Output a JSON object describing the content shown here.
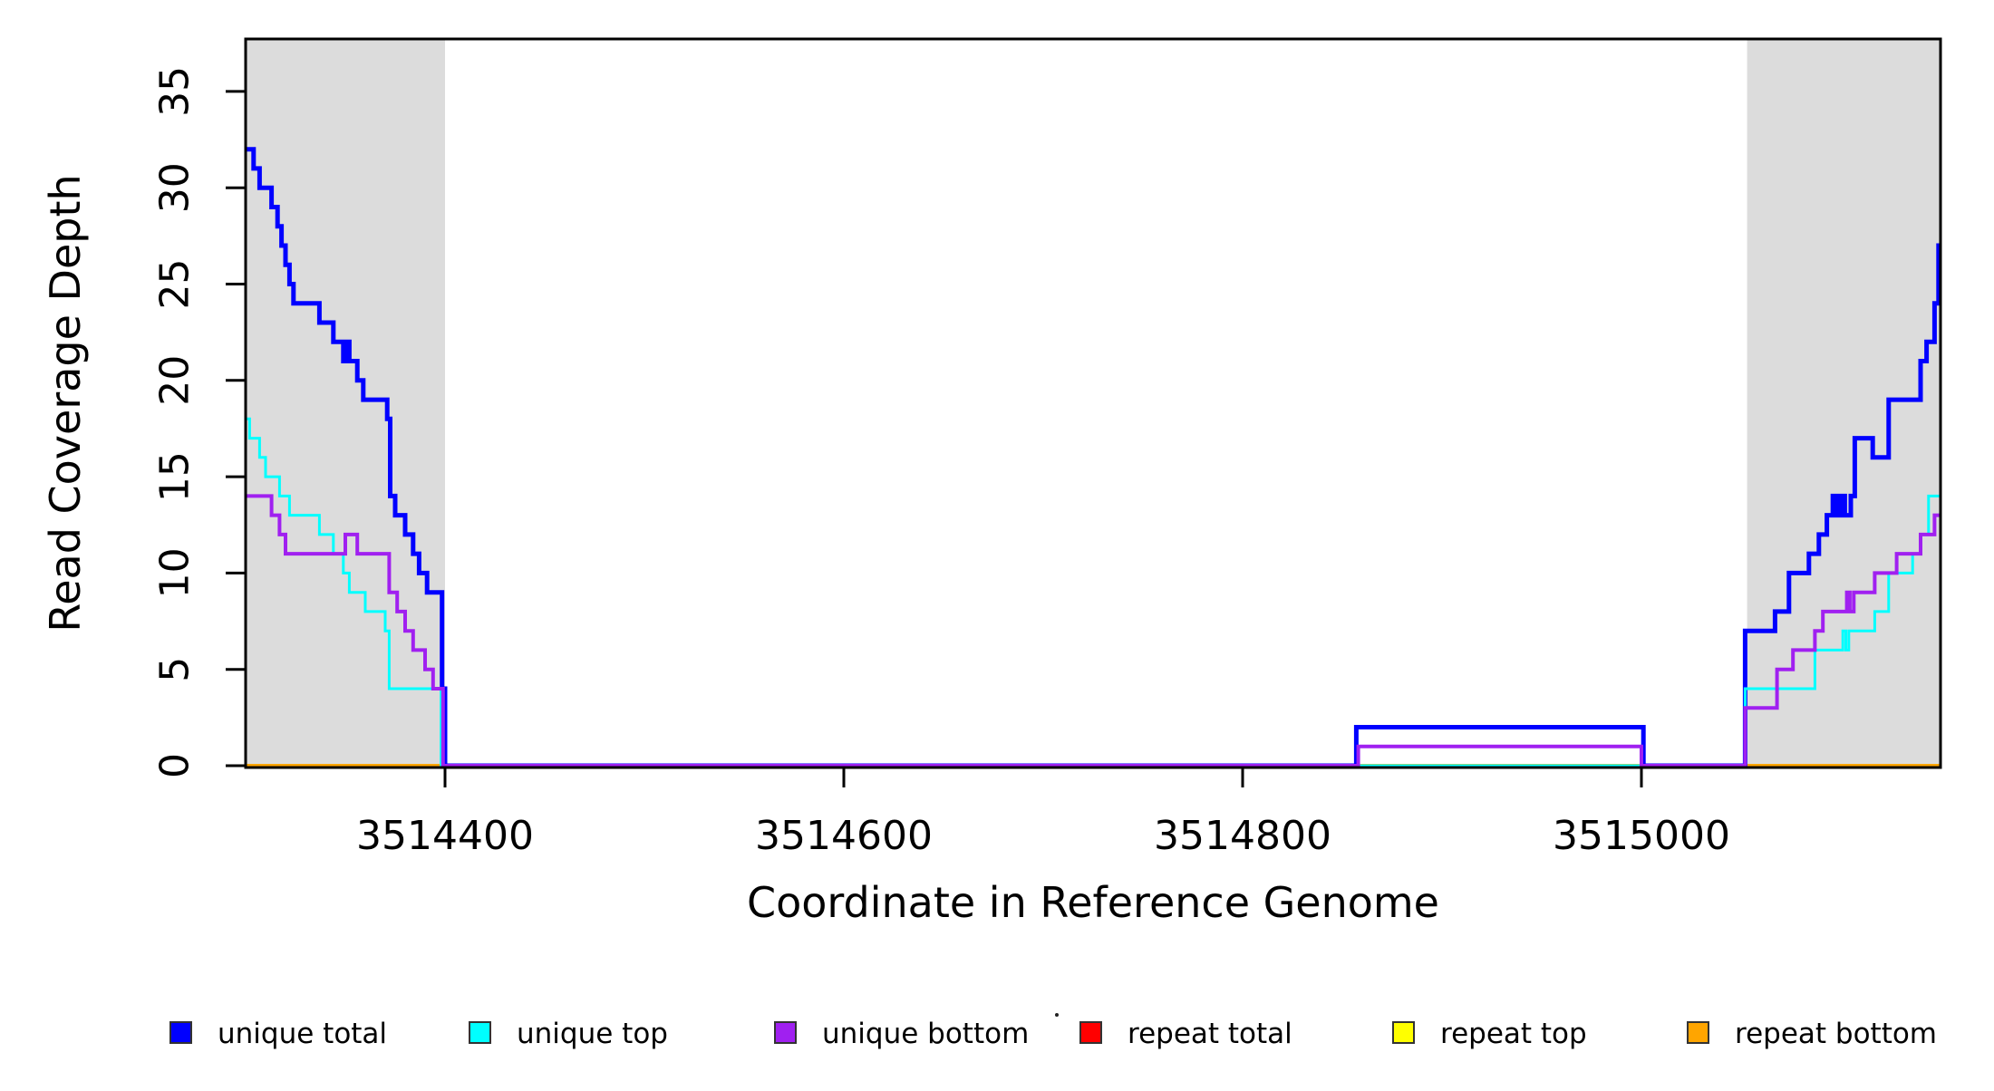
{
  "chart_data": {
    "type": "line",
    "subtype": "step",
    "title": "",
    "xlabel": "Coordinate in Reference Genome",
    "ylabel": "Read Coverage Depth",
    "xlim": [
      3514300,
      3515150
    ],
    "ylim": [
      0,
      37.7
    ],
    "x_ticks": [
      3514400,
      3514600,
      3514800,
      3515000
    ],
    "y_ticks": [
      0,
      5,
      10,
      15,
      20,
      25,
      30,
      35
    ],
    "grid": false,
    "frame_color": "#000000",
    "background_shading": {
      "color": "#DCDCDC",
      "regions": [
        [
          3514300,
          3514400
        ],
        [
          3515053,
          3515150
        ]
      ]
    },
    "legend_position": "bottom",
    "legend": [
      {
        "label": "unique total",
        "color": "#0000FF"
      },
      {
        "label": "unique top",
        "color": "#00FFFF"
      },
      {
        "label": "unique bottom",
        "color": "#A020F0"
      },
      {
        "label": "repeat total",
        "color": "#FF0000"
      },
      {
        "label": "repeat top",
        "color": "#FFFF00"
      },
      {
        "label": "repeat bottom",
        "color": "#FFA500"
      }
    ],
    "series": [
      {
        "name": "repeat total",
        "color": "#FF0000",
        "line_width": 3,
        "steps": [
          [
            3514300,
            0
          ],
          [
            3515150,
            0
          ]
        ]
      },
      {
        "name": "repeat top",
        "color": "#FFFF00",
        "line_width": 3,
        "steps": [
          [
            3514300,
            0
          ],
          [
            3515150,
            0
          ]
        ]
      },
      {
        "name": "repeat bottom",
        "color": "#FFA500",
        "line_width": 4,
        "steps": [
          [
            3514300,
            0
          ],
          [
            3515150,
            0
          ]
        ]
      },
      {
        "name": "unique total",
        "color": "#0000FF",
        "line_width": 5,
        "steps": [
          [
            3514300,
            32
          ],
          [
            3514304,
            31
          ],
          [
            3514307,
            30
          ],
          [
            3514313,
            29
          ],
          [
            3514316,
            28
          ],
          [
            3514318,
            27
          ],
          [
            3514320,
            26
          ],
          [
            3514322,
            25
          ],
          [
            3514324,
            24
          ],
          [
            3514337,
            23
          ],
          [
            3514344,
            22
          ],
          [
            3514349,
            21
          ],
          [
            3514350.5,
            22
          ],
          [
            3514352,
            21
          ],
          [
            3514356,
            20
          ],
          [
            3514359,
            19
          ],
          [
            3514371,
            18
          ],
          [
            3514372.5,
            14
          ],
          [
            3514375,
            13
          ],
          [
            3514380,
            12
          ],
          [
            3514384,
            11
          ],
          [
            3514387,
            10
          ],
          [
            3514391,
            9
          ],
          [
            3514398.5,
            4
          ],
          [
            3514400,
            0
          ],
          [
            3514857,
            2
          ],
          [
            3515001,
            0
          ],
          [
            3515052,
            7
          ],
          [
            3515067,
            8
          ],
          [
            3515074,
            10
          ],
          [
            3515084,
            11
          ],
          [
            3515089,
            12
          ],
          [
            3515093,
            13
          ],
          [
            3515096,
            14
          ],
          [
            3515098,
            13
          ],
          [
            3515100,
            14
          ],
          [
            3515102,
            13
          ],
          [
            3515105,
            14
          ],
          [
            3515107,
            17
          ],
          [
            3515116,
            16
          ],
          [
            3515124,
            19
          ],
          [
            3515140,
            21
          ],
          [
            3515143,
            22
          ],
          [
            3515147,
            24
          ],
          [
            3515149,
            27
          ],
          [
            3515150,
            27
          ]
        ]
      },
      {
        "name": "unique top",
        "color": "#00FFFF",
        "line_width": 3,
        "steps": [
          [
            3514300,
            18
          ],
          [
            3514302,
            17
          ],
          [
            3514307,
            16
          ],
          [
            3514310,
            15
          ],
          [
            3514317,
            14
          ],
          [
            3514322,
            13
          ],
          [
            3514337,
            12
          ],
          [
            3514344,
            11
          ],
          [
            3514349,
            10
          ],
          [
            3514352,
            9
          ],
          [
            3514360,
            8
          ],
          [
            3514370,
            7
          ],
          [
            3514372,
            4
          ],
          [
            3514398,
            0
          ],
          [
            3515052,
            4
          ],
          [
            3515087,
            6
          ],
          [
            3515101,
            7
          ],
          [
            3515102.5,
            6
          ],
          [
            3515104,
            7
          ],
          [
            3515117,
            8
          ],
          [
            3515124,
            10
          ],
          [
            3515136,
            11
          ],
          [
            3515140,
            12
          ],
          [
            3515144,
            14
          ],
          [
            3515150,
            14
          ]
        ]
      },
      {
        "name": "unique bottom",
        "color": "#A020F0",
        "line_width": 4,
        "steps": [
          [
            3514300,
            14
          ],
          [
            3514313,
            13
          ],
          [
            3514317,
            12
          ],
          [
            3514320,
            11
          ],
          [
            3514350,
            12
          ],
          [
            3514356,
            11
          ],
          [
            3514372,
            9
          ],
          [
            3514376,
            8
          ],
          [
            3514380,
            7
          ],
          [
            3514384,
            6
          ],
          [
            3514390,
            5
          ],
          [
            3514394,
            4
          ],
          [
            3514399,
            0
          ],
          [
            3514858,
            1
          ],
          [
            3515000,
            0
          ],
          [
            3515052,
            3
          ],
          [
            3515068,
            5
          ],
          [
            3515076,
            6
          ],
          [
            3515087,
            7
          ],
          [
            3515091,
            8
          ],
          [
            3515103,
            9
          ],
          [
            3515104.5,
            8
          ],
          [
            3515106.5,
            9
          ],
          [
            3515117,
            10
          ],
          [
            3515128,
            11
          ],
          [
            3515140,
            12
          ],
          [
            3515147,
            13
          ],
          [
            3515150,
            13
          ]
        ]
      }
    ]
  }
}
